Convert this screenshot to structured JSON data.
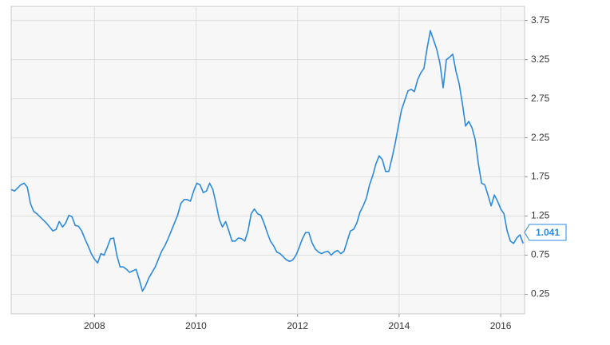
{
  "chart_data": {
    "type": "line",
    "x": [
      2006.362,
      2006.425,
      2006.488,
      2006.551,
      2006.614,
      2006.677,
      2006.74,
      2006.803,
      2006.866,
      2006.929,
      2006.992,
      2007.055,
      2007.118,
      2007.181,
      2007.244,
      2007.307,
      2007.37,
      2007.433,
      2007.496,
      2007.559,
      2007.622,
      2007.685,
      2007.748,
      2007.811,
      2007.874,
      2007.937,
      2008.0,
      2008.063,
      2008.126,
      2008.189,
      2008.252,
      2008.315,
      2008.378,
      2008.441,
      2008.504,
      2008.567,
      2008.63,
      2008.693,
      2008.756,
      2008.819,
      2008.882,
      2008.945,
      2009.008,
      2009.071,
      2009.134,
      2009.197,
      2009.26,
      2009.323,
      2009.386,
      2009.449,
      2009.512,
      2009.575,
      2009.638,
      2009.701,
      2009.764,
      2009.827,
      2009.89,
      2009.953,
      2010.016,
      2010.079,
      2010.142,
      2010.205,
      2010.268,
      2010.331,
      2010.394,
      2010.457,
      2010.52,
      2010.583,
      2010.646,
      2010.709,
      2010.772,
      2010.835,
      2010.898,
      2010.961,
      2011.024,
      2011.087,
      2011.15,
      2011.213,
      2011.276,
      2011.339,
      2011.402,
      2011.465,
      2011.528,
      2011.591,
      2011.654,
      2011.717,
      2011.78,
      2011.843,
      2011.906,
      2011.969,
      2012.032,
      2012.095,
      2012.158,
      2012.221,
      2012.284,
      2012.347,
      2012.41,
      2012.473,
      2012.536,
      2012.599,
      2012.662,
      2012.725,
      2012.788,
      2012.851,
      2012.914,
      2012.977,
      2013.04,
      2013.103,
      2013.166,
      2013.229,
      2013.292,
      2013.355,
      2013.418,
      2013.481,
      2013.544,
      2013.607,
      2013.67,
      2013.733,
      2013.796,
      2013.859,
      2013.922,
      2013.985,
      2014.048,
      2014.111,
      2014.174,
      2014.237,
      2014.3,
      2014.363,
      2014.426,
      2014.489,
      2014.552,
      2014.615,
      2014.678,
      2014.741,
      2014.804,
      2014.867,
      2014.93,
      2014.993,
      2015.056,
      2015.119,
      2015.182,
      2015.245,
      2015.308,
      2015.371,
      2015.434,
      2015.497,
      2015.56,
      2015.623,
      2015.686,
      2015.749,
      2015.812,
      2015.875,
      2015.938,
      2016.001,
      2016.064,
      2016.127,
      2016.19,
      2016.253,
      2016.316,
      2016.379,
      2016.442
    ],
    "series": [
      {
        "color": "#2b8ae0",
        "values": [
          1.59,
          1.57,
          1.61,
          1.65,
          1.67,
          1.62,
          1.41,
          1.31,
          1.28,
          1.24,
          1.2,
          1.16,
          1.11,
          1.06,
          1.08,
          1.18,
          1.11,
          1.16,
          1.26,
          1.24,
          1.13,
          1.12,
          1.06,
          0.96,
          0.87,
          0.77,
          0.7,
          0.65,
          0.77,
          0.75,
          0.85,
          0.96,
          0.97,
          0.75,
          0.6,
          0.6,
          0.57,
          0.53,
          0.55,
          0.57,
          0.44,
          0.29,
          0.36,
          0.46,
          0.53,
          0.6,
          0.7,
          0.8,
          0.87,
          0.96,
          1.06,
          1.16,
          1.26,
          1.41,
          1.46,
          1.46,
          1.44,
          1.57,
          1.67,
          1.65,
          1.55,
          1.57,
          1.67,
          1.59,
          1.41,
          1.21,
          1.11,
          1.18,
          1.06,
          0.93,
          0.93,
          0.97,
          0.96,
          0.93,
          1.06,
          1.28,
          1.34,
          1.28,
          1.26,
          1.16,
          1.04,
          0.93,
          0.87,
          0.79,
          0.77,
          0.73,
          0.69,
          0.67,
          0.69,
          0.75,
          0.85,
          0.96,
          1.04,
          1.04,
          0.91,
          0.83,
          0.79,
          0.77,
          0.79,
          0.8,
          0.75,
          0.79,
          0.81,
          0.77,
          0.8,
          0.93,
          1.06,
          1.08,
          1.16,
          1.3,
          1.38,
          1.48,
          1.65,
          1.77,
          1.92,
          2.02,
          1.97,
          1.82,
          1.82,
          1.99,
          2.18,
          2.4,
          2.61,
          2.73,
          2.85,
          2.87,
          2.84,
          2.99,
          3.08,
          3.14,
          3.4,
          3.62,
          3.5,
          3.38,
          3.2,
          2.89,
          3.25,
          3.28,
          3.32,
          3.1,
          2.94,
          2.69,
          2.4,
          2.46,
          2.38,
          2.23,
          1.92,
          1.67,
          1.65,
          1.52,
          1.38,
          1.52,
          1.44,
          1.34,
          1.28,
          1.06,
          0.93,
          0.9,
          0.97,
          1.01,
          0.9
        ]
      }
    ],
    "annotation": 1.041,
    "xlim": [
      2006.36,
      2016.47
    ],
    "xticks": [
      2008,
      2010,
      2012,
      2014,
      2016
    ],
    "ylim": [
      0,
      3.93
    ],
    "yticks": [
      0.25,
      0.75,
      1.25,
      1.75,
      2.25,
      2.75,
      3.25,
      3.75
    ],
    "grid": true
  }
}
